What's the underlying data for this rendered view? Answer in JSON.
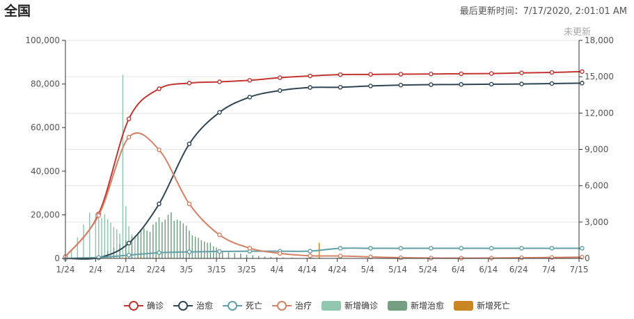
{
  "header": {
    "title": "全国",
    "updated_label": "最后更新时间：7/17/2020, 2:01:01 AM",
    "not_updated_label": "未更新"
  },
  "legend": [
    {
      "name": "确诊",
      "kind": "line",
      "color": "#c23531"
    },
    {
      "name": "治愈",
      "kind": "line",
      "color": "#2f4554"
    },
    {
      "name": "死亡",
      "kind": "line",
      "color": "#61a0a8"
    },
    {
      "name": "治疗",
      "kind": "line",
      "color": "#d48265"
    },
    {
      "name": "新增确诊",
      "kind": "bar",
      "color": "#91c7ae"
    },
    {
      "name": "新增治愈",
      "kind": "bar",
      "color": "#749f83"
    },
    {
      "name": "新增死亡",
      "kind": "bar",
      "color": "#ca8622"
    }
  ],
  "chart_data": {
    "type": "line",
    "x_ticks": [
      "1/24",
      "2/4",
      "2/14",
      "2/24",
      "3/5",
      "3/15",
      "3/25",
      "4/4",
      "4/14",
      "4/24",
      "5/4",
      "5/14",
      "5/24",
      "6/4",
      "6/14",
      "6/24",
      "7/4",
      "7/15"
    ],
    "y_left_ticks": [
      "0",
      "20,000",
      "40,000",
      "60,000",
      "80,000",
      "100,000"
    ],
    "y_left_range": [
      0,
      100000
    ],
    "y_right_ticks": [
      "0",
      "3,000",
      "6,000",
      "9,000",
      "12,000",
      "15,000",
      "18,000"
    ],
    "y_right_range": [
      0,
      18000
    ],
    "series": [
      {
        "name": "确诊",
        "axis": "left",
        "color": "#c23531",
        "points": [
          [
            0,
            830
          ],
          [
            11,
            20400
          ],
          [
            21,
            64000
          ],
          [
            31,
            77800
          ],
          [
            41,
            80400
          ],
          [
            51,
            81000
          ],
          [
            61,
            81700
          ],
          [
            71,
            82900
          ],
          [
            81,
            83700
          ],
          [
            91,
            84300
          ],
          [
            101,
            84400
          ],
          [
            111,
            84500
          ],
          [
            121,
            84600
          ],
          [
            131,
            84700
          ],
          [
            141,
            84800
          ],
          [
            151,
            85100
          ],
          [
            161,
            85300
          ],
          [
            171,
            85700
          ]
        ]
      },
      {
        "name": "治愈",
        "axis": "left",
        "color": "#2f4554",
        "points": [
          [
            0,
            30
          ],
          [
            11,
            300
          ],
          [
            21,
            7000
          ],
          [
            31,
            25000
          ],
          [
            41,
            52500
          ],
          [
            51,
            67000
          ],
          [
            61,
            74000
          ],
          [
            71,
            77000
          ],
          [
            81,
            78400
          ],
          [
            91,
            78500
          ],
          [
            101,
            79100
          ],
          [
            111,
            79500
          ],
          [
            121,
            79700
          ],
          [
            131,
            79800
          ],
          [
            141,
            79900
          ],
          [
            151,
            80000
          ],
          [
            161,
            80200
          ],
          [
            171,
            80400
          ]
        ]
      },
      {
        "name": "死亡",
        "axis": "left",
        "color": "#61a0a8",
        "points": [
          [
            0,
            26
          ],
          [
            11,
            430
          ],
          [
            21,
            1500
          ],
          [
            31,
            2600
          ],
          [
            41,
            3000
          ],
          [
            51,
            3200
          ],
          [
            61,
            3300
          ],
          [
            71,
            3300
          ],
          [
            81,
            3350
          ],
          [
            91,
            4640
          ],
          [
            101,
            4640
          ],
          [
            111,
            4640
          ],
          [
            121,
            4640
          ],
          [
            131,
            4640
          ],
          [
            141,
            4640
          ],
          [
            151,
            4640
          ],
          [
            161,
            4640
          ],
          [
            171,
            4640
          ]
        ]
      },
      {
        "name": "治疗",
        "axis": "left",
        "color": "#d48265",
        "points": [
          [
            0,
            780
          ],
          [
            11,
            19700
          ],
          [
            21,
            55600
          ],
          [
            31,
            49800
          ],
          [
            41,
            25000
          ],
          [
            51,
            10800
          ],
          [
            61,
            4700
          ],
          [
            71,
            2300
          ],
          [
            81,
            1200
          ],
          [
            91,
            1100
          ],
          [
            101,
            700
          ],
          [
            111,
            300
          ],
          [
            121,
            150
          ],
          [
            131,
            120
          ],
          [
            141,
            140
          ],
          [
            151,
            300
          ],
          [
            161,
            430
          ],
          [
            171,
            580
          ]
        ]
      },
      {
        "name": "新增确诊",
        "axis": "right",
        "color": "#91c7ae",
        "values": [
          [
            0,
            260
          ],
          [
            2,
            690
          ],
          [
            4,
            1750
          ],
          [
            6,
            2800
          ],
          [
            8,
            3780
          ],
          [
            10,
            3700
          ],
          [
            11,
            3800
          ],
          [
            12,
            3350
          ],
          [
            13,
            3650
          ],
          [
            14,
            3250
          ],
          [
            15,
            2950
          ],
          [
            16,
            2600
          ],
          [
            17,
            2400
          ],
          [
            18,
            2050
          ],
          [
            19,
            15150
          ],
          [
            20,
            4300
          ],
          [
            21,
            2650
          ],
          [
            22,
            2000
          ],
          [
            23,
            1900
          ],
          [
            24,
            1800
          ],
          [
            25,
            890
          ],
          [
            26,
            400
          ],
          [
            28,
            430
          ],
          [
            30,
            330
          ],
          [
            32,
            200
          ],
          [
            34,
            130
          ],
          [
            36,
            100
          ],
          [
            40,
            70
          ],
          [
            46,
            40
          ],
          [
            54,
            40
          ],
          [
            60,
            60
          ],
          [
            66,
            40
          ],
          [
            75,
            40
          ],
          [
            82,
            80
          ],
          [
            90,
            20
          ],
          [
            100,
            10
          ],
          [
            110,
            10
          ],
          [
            130,
            20
          ],
          [
            150,
            10
          ],
          [
            165,
            10
          ]
        ]
      },
      {
        "name": "新增治愈",
        "axis": "right",
        "color": "#749f83",
        "values": [
          [
            14,
            600
          ],
          [
            16,
            900
          ],
          [
            18,
            1200
          ],
          [
            20,
            1500
          ],
          [
            22,
            1800
          ],
          [
            24,
            2100
          ],
          [
            25,
            2400
          ],
          [
            26,
            2500
          ],
          [
            27,
            2300
          ],
          [
            28,
            2200
          ],
          [
            29,
            2800
          ],
          [
            30,
            3000
          ],
          [
            31,
            3400
          ],
          [
            32,
            3000
          ],
          [
            33,
            3200
          ],
          [
            34,
            3600
          ],
          [
            35,
            3800
          ],
          [
            36,
            3100
          ],
          [
            37,
            3200
          ],
          [
            38,
            3100
          ],
          [
            39,
            2900
          ],
          [
            40,
            2700
          ],
          [
            41,
            2300
          ],
          [
            42,
            1900
          ],
          [
            43,
            1800
          ],
          [
            44,
            1700
          ],
          [
            45,
            1500
          ],
          [
            46,
            1400
          ],
          [
            47,
            1300
          ],
          [
            48,
            1300
          ],
          [
            49,
            1000
          ],
          [
            50,
            900
          ],
          [
            51,
            700
          ],
          [
            52,
            600
          ],
          [
            54,
            500
          ],
          [
            56,
            450
          ],
          [
            58,
            400
          ],
          [
            60,
            300
          ],
          [
            62,
            250
          ],
          [
            64,
            200
          ],
          [
            66,
            150
          ],
          [
            68,
            120
          ],
          [
            70,
            100
          ],
          [
            72,
            80
          ],
          [
            75,
            60
          ],
          [
            80,
            50
          ],
          [
            85,
            40
          ],
          [
            90,
            40
          ],
          [
            100,
            30
          ],
          [
            110,
            20
          ],
          [
            130,
            20
          ],
          [
            150,
            20
          ]
        ]
      },
      {
        "name": "新增死亡",
        "axis": "right",
        "color": "#ca8622",
        "values": [
          [
            10,
            65
          ],
          [
            15,
            100
          ],
          [
            20,
            140
          ],
          [
            25,
            120
          ],
          [
            30,
            80
          ],
          [
            35,
            40
          ],
          [
            40,
            30
          ],
          [
            50,
            20
          ],
          [
            60,
            10
          ],
          [
            84,
            1290
          ]
        ]
      }
    ]
  }
}
